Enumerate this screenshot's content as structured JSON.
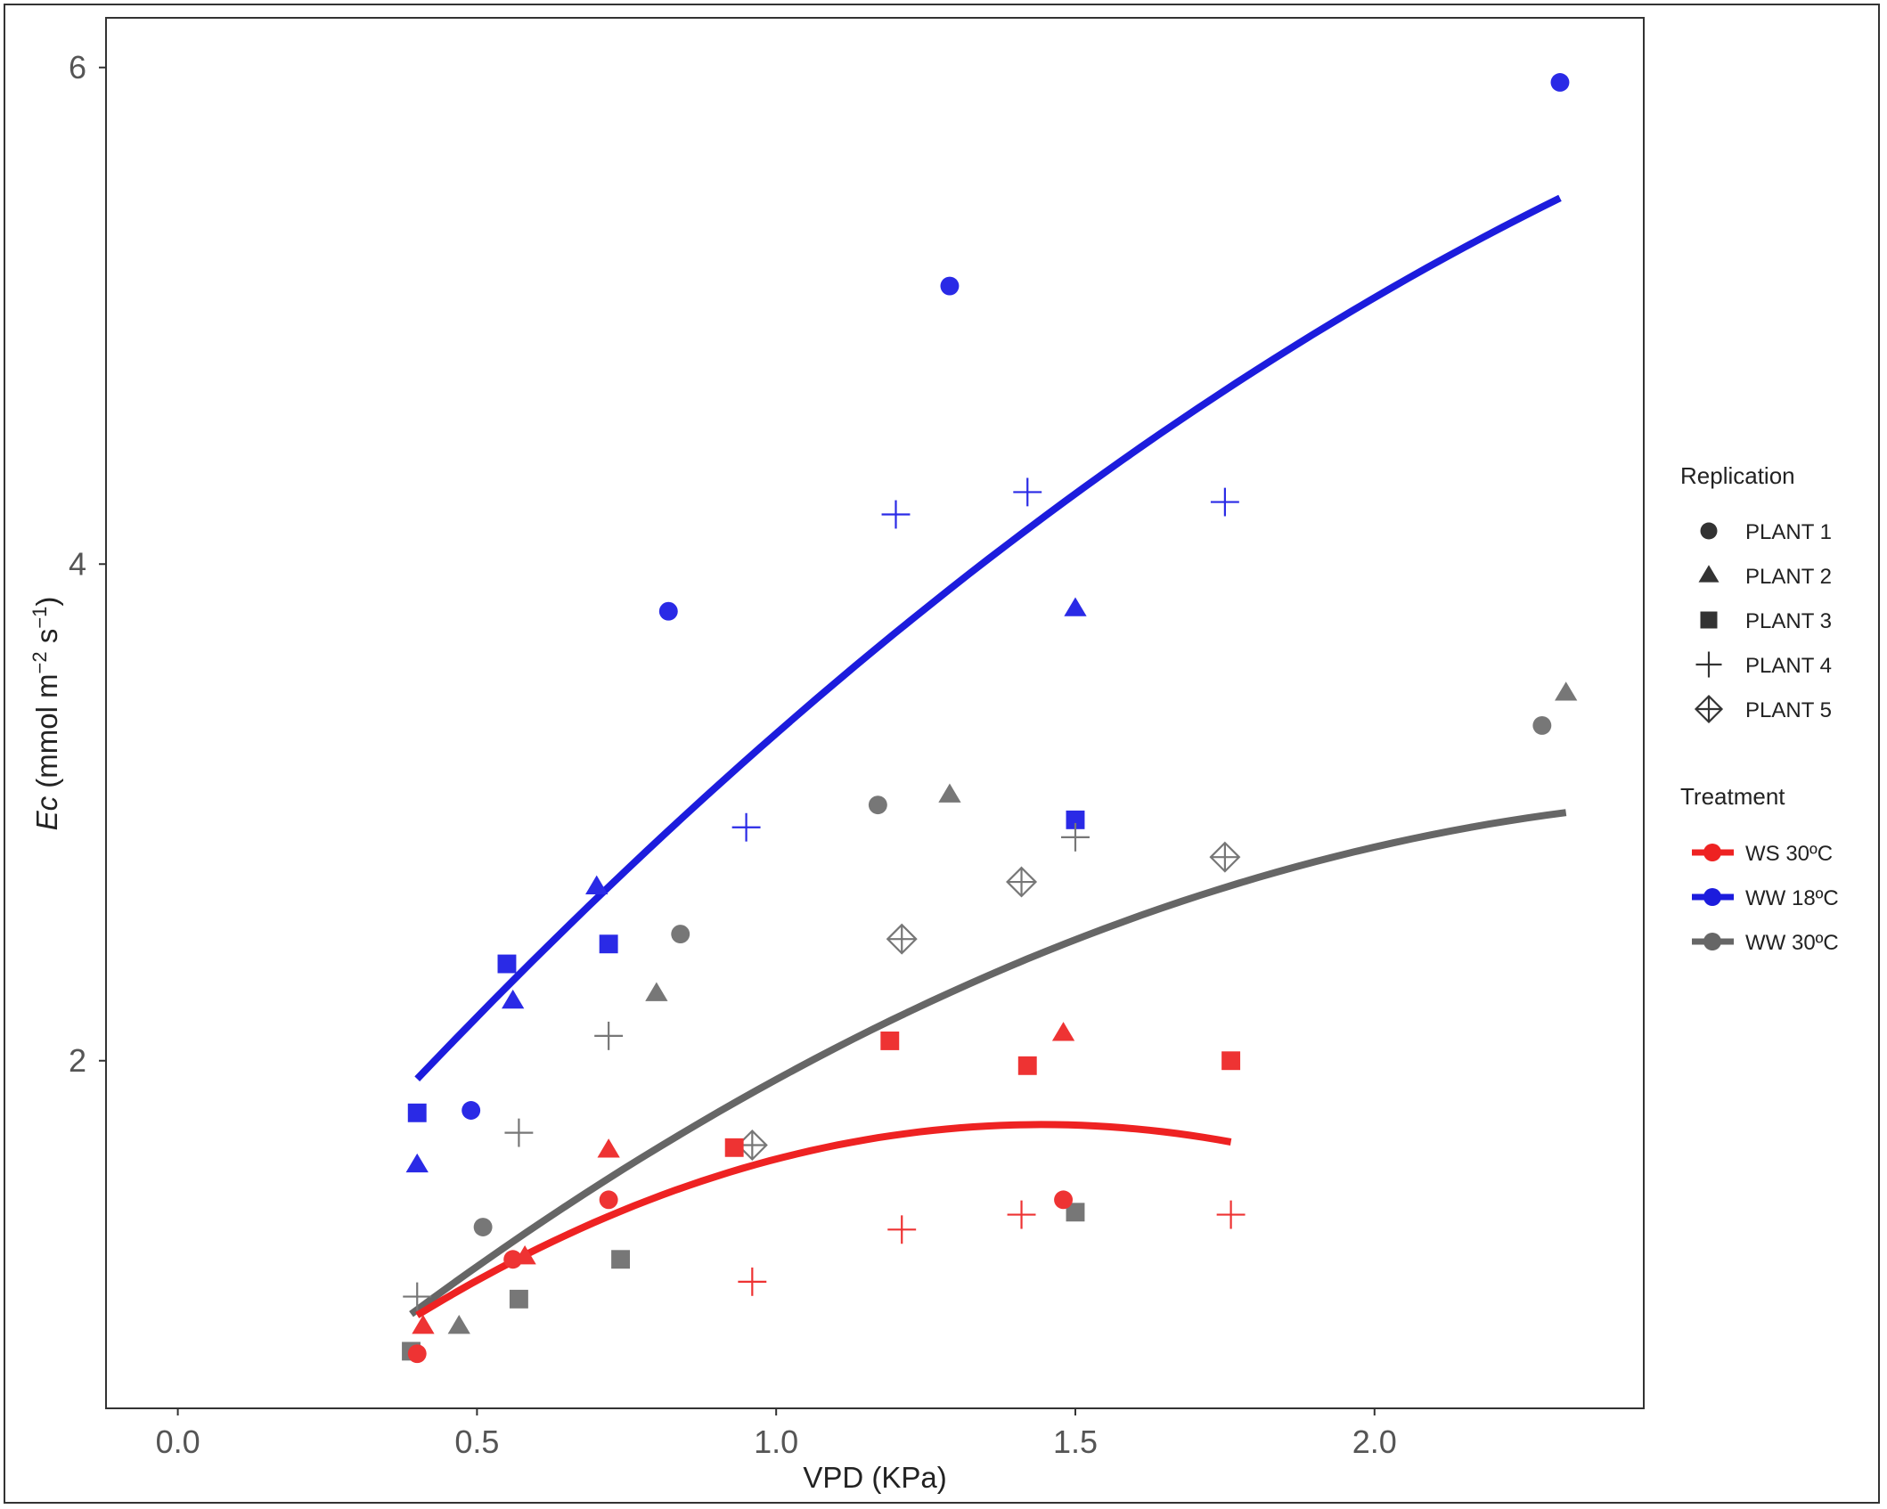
{
  "chart_data": {
    "type": "scatter",
    "title": "",
    "xlabel": "VPD (KPa)",
    "ylabel": {
      "italic": "Ec",
      "unit_prefix": " (mmol m",
      "sup1": "−2",
      "unit_mid": " s",
      "sup2": "−1",
      "unit_suffix": ")"
    },
    "xlim": [
      -0.12,
      2.45
    ],
    "ylim": [
      0.6,
      6.2
    ],
    "x_ticks": [
      0.0,
      0.5,
      1.0,
      1.5,
      2.0
    ],
    "x_tick_labels": [
      "0.0",
      "0.5",
      "1.0",
      "1.5",
      "2.0"
    ],
    "y_ticks": [
      2,
      4,
      6
    ],
    "y_tick_labels": [
      "2",
      "4",
      "6"
    ],
    "grid": false,
    "legend_placement": "right",
    "replication_legend": {
      "title": "Replication",
      "items": [
        {
          "label": "PLANT 1",
          "shape": "circle"
        },
        {
          "label": "PLANT 2",
          "shape": "triangle"
        },
        {
          "label": "PLANT 3",
          "shape": "square"
        },
        {
          "label": "PLANT 4",
          "shape": "plus"
        },
        {
          "label": "PLANT 5",
          "shape": "diamond-plus"
        }
      ]
    },
    "treatment_legend": {
      "title": "Treatment",
      "items": [
        {
          "label": "WS 30ºC",
          "color": "#ee2222"
        },
        {
          "label": "WW 18ºC",
          "color": "#1c1cdd"
        },
        {
          "label": "WW 30ºC",
          "color": "#666666"
        }
      ]
    },
    "series": [
      {
        "name": "WW 18ºC",
        "color": "#1c1cdd",
        "point_color": "#2a2ae6",
        "fit": {
          "x_range": [
            0.4,
            2.31
          ],
          "coef": [
            0.8585,
            2.8108,
            -0.3518
          ]
        },
        "points": [
          {
            "x": 2.31,
            "y": 5.94,
            "shape": "circle"
          },
          {
            "x": 1.29,
            "y": 5.12,
            "shape": "circle"
          },
          {
            "x": 0.82,
            "y": 3.81,
            "shape": "circle"
          },
          {
            "x": 0.49,
            "y": 1.8,
            "shape": "circle"
          },
          {
            "x": 1.5,
            "y": 3.82,
            "shape": "triangle"
          },
          {
            "x": 0.7,
            "y": 2.7,
            "shape": "triangle"
          },
          {
            "x": 0.56,
            "y": 2.24,
            "shape": "triangle"
          },
          {
            "x": 0.4,
            "y": 1.58,
            "shape": "triangle"
          },
          {
            "x": 1.5,
            "y": 2.97,
            "shape": "square"
          },
          {
            "x": 0.72,
            "y": 2.47,
            "shape": "square"
          },
          {
            "x": 0.55,
            "y": 2.39,
            "shape": "square"
          },
          {
            "x": 0.4,
            "y": 1.79,
            "shape": "square"
          },
          {
            "x": 1.42,
            "y": 4.29,
            "shape": "plus"
          },
          {
            "x": 1.2,
            "y": 4.2,
            "shape": "plus"
          },
          {
            "x": 1.75,
            "y": 4.25,
            "shape": "plus"
          },
          {
            "x": 0.95,
            "y": 2.94,
            "shape": "plus"
          }
        ]
      },
      {
        "name": "WW 30ºC",
        "color": "#666666",
        "point_color": "#777777",
        "fit": {
          "x_range": [
            0.39,
            2.32
          ],
          "coef": [
            0.2276,
            2.0768,
            -0.3802
          ]
        },
        "points": [
          {
            "x": 2.28,
            "y": 3.35,
            "shape": "circle"
          },
          {
            "x": 1.17,
            "y": 3.03,
            "shape": "circle"
          },
          {
            "x": 0.84,
            "y": 2.51,
            "shape": "circle"
          },
          {
            "x": 0.51,
            "y": 1.33,
            "shape": "circle"
          },
          {
            "x": 2.32,
            "y": 3.48,
            "shape": "triangle"
          },
          {
            "x": 1.29,
            "y": 3.07,
            "shape": "triangle"
          },
          {
            "x": 0.8,
            "y": 2.27,
            "shape": "triangle"
          },
          {
            "x": 0.47,
            "y": 0.93,
            "shape": "triangle"
          },
          {
            "x": 1.5,
            "y": 1.39,
            "shape": "square"
          },
          {
            "x": 0.74,
            "y": 1.2,
            "shape": "square"
          },
          {
            "x": 0.57,
            "y": 1.04,
            "shape": "square"
          },
          {
            "x": 0.39,
            "y": 0.83,
            "shape": "square"
          },
          {
            "x": 1.5,
            "y": 2.9,
            "shape": "plus"
          },
          {
            "x": 0.72,
            "y": 2.1,
            "shape": "plus"
          },
          {
            "x": 0.57,
            "y": 1.71,
            "shape": "plus"
          },
          {
            "x": 0.4,
            "y": 1.05,
            "shape": "plus"
          },
          {
            "x": 1.75,
            "y": 2.82,
            "shape": "diamond-plus"
          },
          {
            "x": 1.41,
            "y": 2.72,
            "shape": "diamond-plus"
          },
          {
            "x": 1.21,
            "y": 2.49,
            "shape": "diamond-plus"
          },
          {
            "x": 0.96,
            "y": 1.66,
            "shape": "diamond-plus"
          }
        ]
      },
      {
        "name": "WS 30ºC",
        "color": "#ee2222",
        "point_color": "#ee3333",
        "fit": {
          "x_range": [
            0.4,
            1.76
          ],
          "coef": [
            0.2737,
            2.0347,
            -0.7045
          ]
        },
        "points": [
          {
            "x": 1.48,
            "y": 1.44,
            "shape": "circle"
          },
          {
            "x": 0.72,
            "y": 1.44,
            "shape": "circle"
          },
          {
            "x": 0.56,
            "y": 1.2,
            "shape": "circle"
          },
          {
            "x": 0.4,
            "y": 0.82,
            "shape": "circle"
          },
          {
            "x": 1.48,
            "y": 2.11,
            "shape": "triangle"
          },
          {
            "x": 0.72,
            "y": 1.64,
            "shape": "triangle"
          },
          {
            "x": 0.58,
            "y": 1.21,
            "shape": "triangle"
          },
          {
            "x": 0.41,
            "y": 0.93,
            "shape": "triangle"
          },
          {
            "x": 1.19,
            "y": 2.08,
            "shape": "square"
          },
          {
            "x": 1.42,
            "y": 1.98,
            "shape": "square"
          },
          {
            "x": 1.76,
            "y": 2.0,
            "shape": "square"
          },
          {
            "x": 0.93,
            "y": 1.65,
            "shape": "square"
          },
          {
            "x": 1.76,
            "y": 1.38,
            "shape": "plus"
          },
          {
            "x": 1.41,
            "y": 1.38,
            "shape": "plus"
          },
          {
            "x": 1.21,
            "y": 1.32,
            "shape": "plus"
          },
          {
            "x": 0.96,
            "y": 1.11,
            "shape": "plus"
          }
        ]
      }
    ]
  }
}
